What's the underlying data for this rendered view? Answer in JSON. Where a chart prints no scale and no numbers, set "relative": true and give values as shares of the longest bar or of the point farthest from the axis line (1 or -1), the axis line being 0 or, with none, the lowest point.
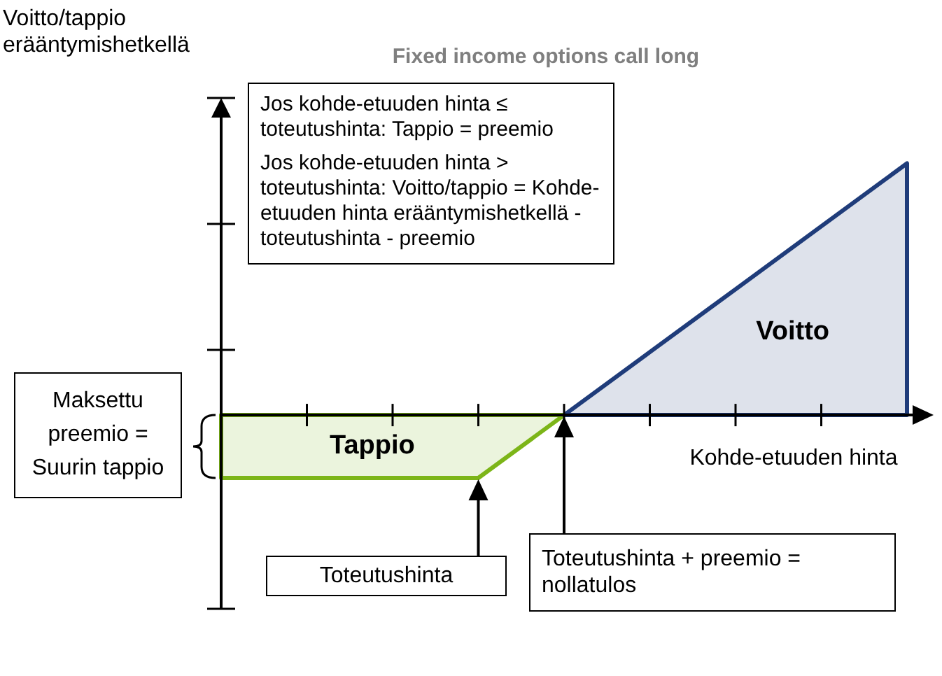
{
  "chart_data": {
    "type": "area",
    "title": "Fixed income options call long",
    "xlabel": "Kohde-etuuden hinta",
    "ylabel": "Voitto/tappio erääntymishetkellä",
    "categories": [
      null,
      null,
      null,
      null,
      null,
      null,
      null,
      null,
      null
    ],
    "relative": true,
    "legend": false,
    "series": [
      {
        "name": "Tappio",
        "color": "#7cb518",
        "values": [
          -0.25,
          -0.25,
          -0.25,
          -0.25,
          0,
          null,
          null,
          null,
          null
        ]
      },
      {
        "name": "Voitto",
        "color": "#1f3c7a",
        "values": [
          null,
          null,
          null,
          null,
          0,
          0.25,
          0.5,
          0.75,
          1
        ]
      }
    ],
    "annotations": [
      "Jos kohde-etuuden hinta ≤ toteutushinta: Tappio = preemio",
      "Jos kohde-etuuden hinta > toteutushinta: Voitto/tappio = Kohde-etuuden hinta erääntymishetkellä - toteutushinta - preemio",
      "Maksettu preemio = Suurin tappio",
      "Toteutushinta",
      "Toteutushinta + preemio = nollatulos"
    ]
  }
}
